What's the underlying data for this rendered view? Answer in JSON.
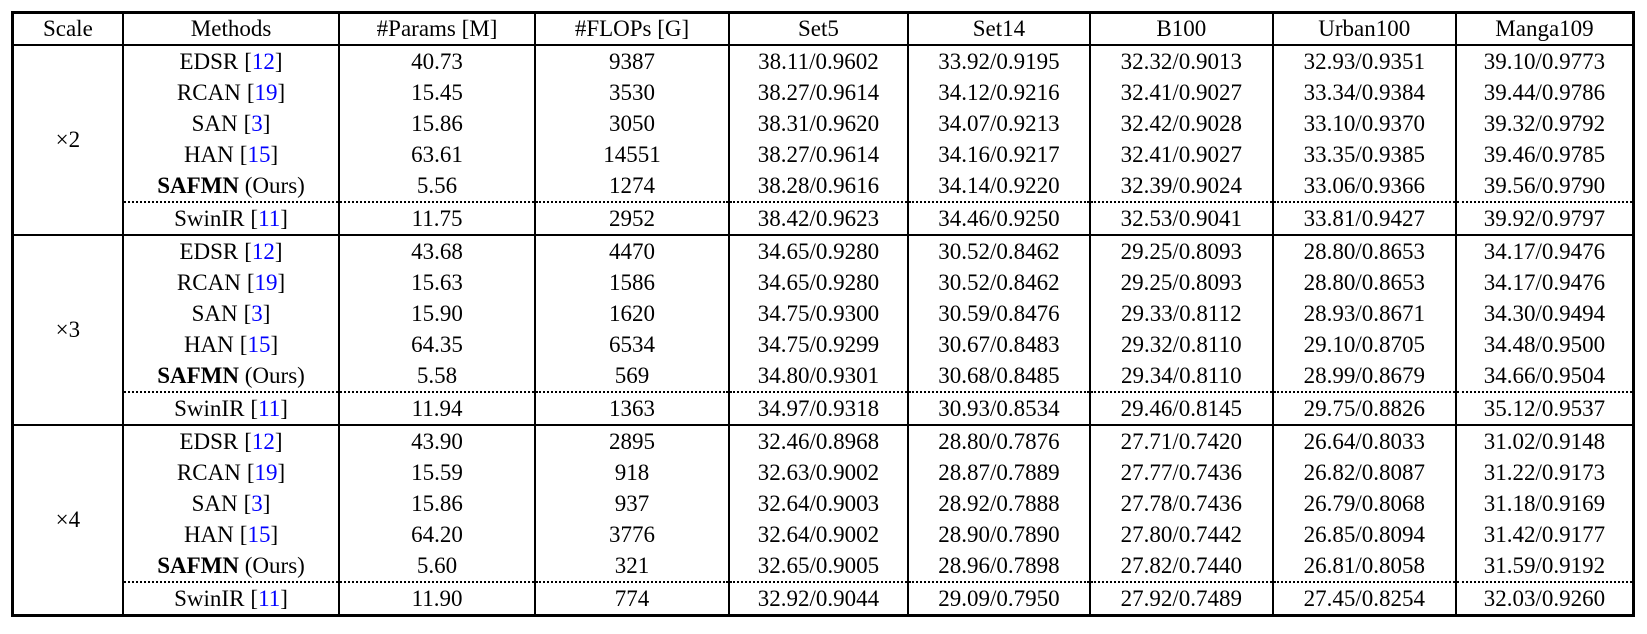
{
  "table": {
    "columns": [
      "Scale",
      "Methods",
      "#Params [M]",
      "#FLOPs [G]",
      "Set5",
      "Set14",
      "B100",
      "Urban100",
      "Manga109"
    ],
    "citation_brackets": {
      "open": "[",
      "close": "]"
    },
    "colors": {
      "citation": "#0000ff",
      "border": "#000000",
      "text": "#000000",
      "background": "#ffffff"
    },
    "sections": [
      {
        "scale": "×2",
        "rows": [
          {
            "method": "EDSR",
            "ref": "12",
            "params": "40.73",
            "flops": "9387",
            "scores": [
              "38.11/0.9602",
              "33.92/0.9195",
              "32.32/0.9013",
              "32.93/0.9351",
              "39.10/0.9773"
            ]
          },
          {
            "method": "RCAN",
            "ref": "19",
            "params": "15.45",
            "flops": "3530",
            "scores": [
              "38.27/0.9614",
              "34.12/0.9216",
              "32.41/0.9027",
              "33.34/0.9384",
              "39.44/0.9786"
            ]
          },
          {
            "method": "SAN",
            "ref": "3",
            "params": "15.86",
            "flops": "3050",
            "scores": [
              "38.31/0.9620",
              "34.07/0.9213",
              "32.42/0.9028",
              "33.10/0.9370",
              "39.32/0.9792"
            ]
          },
          {
            "method": "HAN",
            "ref": "15",
            "params": "63.61",
            "flops": "14551",
            "scores": [
              "38.27/0.9614",
              "34.16/0.9217",
              "32.41/0.9027",
              "33.35/0.9385",
              "39.46/0.9785"
            ]
          },
          {
            "method": "SAFMN",
            "suffix": " (Ours)",
            "bold_method": true,
            "params": "5.56",
            "flops": "1274",
            "scores": [
              "38.28/0.9616",
              "34.14/0.9220",
              "32.39/0.9024",
              "33.06/0.9366",
              "39.56/0.9790"
            ]
          },
          {
            "method": "SwinIR",
            "ref": "11",
            "dotted_top": true,
            "params": "11.75",
            "flops": "2952",
            "scores": [
              "38.42/0.9623",
              "34.46/0.9250",
              "32.53/0.9041",
              "33.81/0.9427",
              "39.92/0.9797"
            ]
          }
        ]
      },
      {
        "scale": "×3",
        "rows": [
          {
            "method": "EDSR",
            "ref": "12",
            "params": "43.68",
            "flops": "4470",
            "scores": [
              "34.65/0.9280",
              "30.52/0.8462",
              "29.25/0.8093",
              "28.80/0.8653",
              "34.17/0.9476"
            ]
          },
          {
            "method": "RCAN",
            "ref": "19",
            "params": "15.63",
            "flops": "1586",
            "scores": [
              "34.65/0.9280",
              "30.52/0.8462",
              "29.25/0.8093",
              "28.80/0.8653",
              "34.17/0.9476"
            ]
          },
          {
            "method": "SAN",
            "ref": "3",
            "params": "15.90",
            "flops": "1620",
            "scores": [
              "34.75/0.9300",
              "30.59/0.8476",
              "29.33/0.8112",
              "28.93/0.8671",
              "34.30/0.9494"
            ]
          },
          {
            "method": "HAN",
            "ref": "15",
            "params": "64.35",
            "flops": "6534",
            "scores": [
              "34.75/0.9299",
              "30.67/0.8483",
              "29.32/0.8110",
              "29.10/0.8705",
              "34.48/0.9500"
            ]
          },
          {
            "method": "SAFMN",
            "suffix": " (Ours)",
            "bold_method": true,
            "params": "5.58",
            "flops": "569",
            "scores": [
              "34.80/0.9301",
              "30.68/0.8485",
              "29.34/0.8110",
              "28.99/0.8679",
              "34.66/0.9504"
            ]
          },
          {
            "method": "SwinIR",
            "ref": "11",
            "dotted_top": true,
            "params": "11.94",
            "flops": "1363",
            "scores": [
              "34.97/0.9318",
              "30.93/0.8534",
              "29.46/0.8145",
              "29.75/0.8826",
              "35.12/0.9537"
            ]
          }
        ]
      },
      {
        "scale": "×4",
        "rows": [
          {
            "method": "EDSR",
            "ref": "12",
            "params": "43.90",
            "flops": "2895",
            "scores": [
              "32.46/0.8968",
              "28.80/0.7876",
              "27.71/0.7420",
              "26.64/0.8033",
              "31.02/0.9148"
            ]
          },
          {
            "method": "RCAN",
            "ref": "19",
            "params": "15.59",
            "flops": "918",
            "scores": [
              "32.63/0.9002",
              "28.87/0.7889",
              "27.77/0.7436",
              "26.82/0.8087",
              "31.22/0.9173"
            ]
          },
          {
            "method": "SAN",
            "ref": "3",
            "params": "15.86",
            "flops": "937",
            "scores": [
              "32.64/0.9003",
              "28.92/0.7888",
              "27.78/0.7436",
              "26.79/0.8068",
              "31.18/0.9169"
            ]
          },
          {
            "method": "HAN",
            "ref": "15",
            "params": "64.20",
            "flops": "3776",
            "scores": [
              "32.64/0.9002",
              "28.90/0.7890",
              "27.80/0.7442",
              "26.85/0.8094",
              "31.42/0.9177"
            ]
          },
          {
            "method": "SAFMN",
            "suffix": " (Ours)",
            "bold_method": true,
            "params": "5.60",
            "flops": "321",
            "scores": [
              "32.65/0.9005",
              "28.96/0.7898",
              "27.82/0.7440",
              "26.81/0.8058",
              "31.59/0.9192"
            ]
          },
          {
            "method": "SwinIR",
            "ref": "11",
            "dotted_top": true,
            "params": "11.90",
            "flops": "774",
            "scores": [
              "32.92/0.9044",
              "29.09/0.7950",
              "27.92/0.7489",
              "27.45/0.8254",
              "32.03/0.9260"
            ]
          }
        ]
      }
    ]
  }
}
